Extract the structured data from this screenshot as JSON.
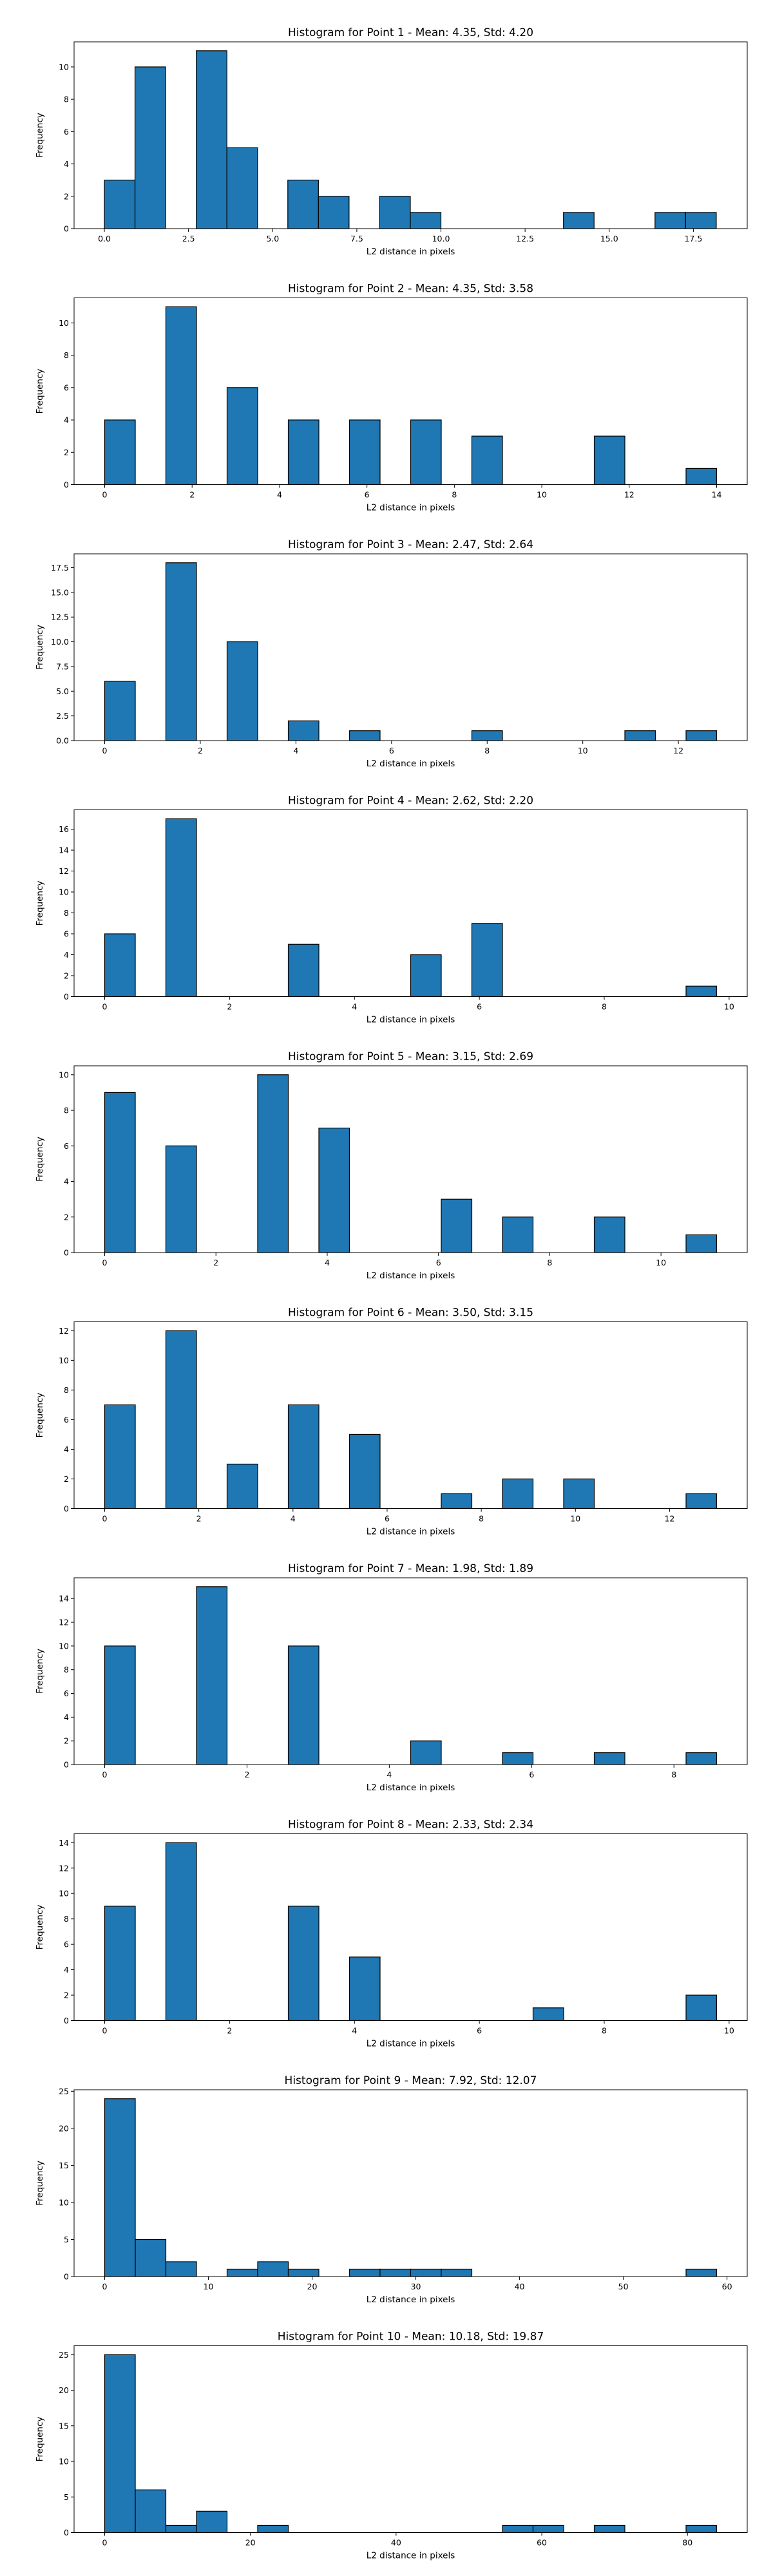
{
  "chart_data": [
    {
      "type": "bar",
      "title": "Histogram for Point 1 - Mean: 4.35, Std: 4.20",
      "xlabel": "L2 distance in pixels",
      "ylabel": "Frequency",
      "xlim": [
        -0.9,
        19.1
      ],
      "ylim": [
        0,
        11.55
      ],
      "xticks": [
        0,
        2.5,
        5,
        7.5,
        10,
        12.5,
        15,
        17.5
      ],
      "xtick_labels": [
        "0.0",
        "2.5",
        "5.0",
        "7.5",
        "10.0",
        "12.5",
        "15.0",
        "17.5"
      ],
      "yticks": [
        0,
        2,
        4,
        6,
        8,
        10
      ],
      "bin_edges": [
        0,
        0.91,
        1.82,
        2.73,
        3.64,
        4.55,
        5.45,
        6.36,
        7.27,
        8.18,
        9.09,
        10.0,
        10.91,
        11.82,
        12.73,
        13.64,
        14.55,
        15.45,
        16.36,
        17.27,
        18.18
      ],
      "values": [
        3,
        10,
        0,
        11,
        5,
        0,
        3,
        2,
        0,
        2,
        1,
        0,
        0,
        0,
        0,
        1,
        0,
        0,
        1,
        1
      ]
    },
    {
      "type": "bar",
      "title": "Histogram for Point 2 - Mean: 4.35, Std: 3.58",
      "xlabel": "L2 distance in pixels",
      "ylabel": "Frequency",
      "xlim": [
        -0.7,
        14.7
      ],
      "ylim": [
        0,
        11.55
      ],
      "xticks": [
        0,
        2,
        4,
        6,
        8,
        10,
        12,
        14
      ],
      "xtick_labels": [
        "0",
        "2",
        "4",
        "6",
        "8",
        "10",
        "12",
        "14"
      ],
      "yticks": [
        0,
        2,
        4,
        6,
        8,
        10
      ],
      "bin_edges": [
        0,
        0.7,
        1.4,
        2.1,
        2.8,
        3.5,
        4.2,
        4.9,
        5.6,
        6.3,
        7.0,
        7.7,
        8.4,
        9.1,
        9.8,
        10.5,
        11.2,
        11.9,
        12.6,
        13.3,
        14.0
      ],
      "values": [
        4,
        0,
        11,
        0,
        6,
        0,
        4,
        0,
        4,
        0,
        4,
        0,
        3,
        0,
        0,
        0,
        3,
        0,
        0,
        1
      ]
    },
    {
      "type": "bar",
      "title": "Histogram for Point 3 - Mean: 2.47, Std: 2.64",
      "xlabel": "L2 distance in pixels",
      "ylabel": "Frequency",
      "xlim": [
        -0.64,
        13.44
      ],
      "ylim": [
        0,
        18.9
      ],
      "xticks": [
        0,
        2,
        4,
        6,
        8,
        10,
        12
      ],
      "xtick_labels": [
        "0",
        "2",
        "4",
        "6",
        "8",
        "10",
        "12"
      ],
      "yticks": [
        0,
        2.5,
        5,
        7.5,
        10,
        12.5,
        15,
        17.5
      ],
      "ytick_labels": [
        "0.0",
        "2.5",
        "5.0",
        "7.5",
        "10.0",
        "12.5",
        "15.0",
        "17.5"
      ],
      "bin_edges": [
        0,
        0.64,
        1.28,
        1.92,
        2.56,
        3.2,
        3.84,
        4.48,
        5.12,
        5.76,
        6.4,
        7.04,
        7.68,
        8.32,
        8.96,
        9.6,
        10.24,
        10.88,
        11.52,
        12.16,
        12.8
      ],
      "values": [
        6,
        0,
        18,
        0,
        10,
        0,
        2,
        0,
        1,
        0,
        0,
        0,
        1,
        0,
        0,
        0,
        0,
        1,
        0,
        1
      ]
    },
    {
      "type": "bar",
      "title": "Histogram for Point 4 - Mean: 2.62, Std: 2.20",
      "xlabel": "L2 distance in pixels",
      "ylabel": "Frequency",
      "xlim": [
        -0.49,
        10.29
      ],
      "ylim": [
        0,
        17.85
      ],
      "xticks": [
        0,
        2,
        4,
        6,
        8,
        10
      ],
      "xtick_labels": [
        "0",
        "2",
        "4",
        "6",
        "8",
        "10"
      ],
      "yticks": [
        0,
        2,
        4,
        6,
        8,
        10,
        12,
        14,
        16
      ],
      "bin_edges": [
        0,
        0.49,
        0.98,
        1.47,
        1.96,
        2.45,
        2.94,
        3.43,
        3.92,
        4.41,
        4.9,
        5.39,
        5.88,
        6.37,
        6.86,
        7.35,
        7.84,
        8.33,
        8.82,
        9.31,
        9.8
      ],
      "values": [
        6,
        0,
        17,
        0,
        0,
        0,
        5,
        0,
        0,
        0,
        4,
        0,
        7,
        0,
        0,
        0,
        0,
        0,
        0,
        1
      ]
    },
    {
      "type": "bar",
      "title": "Histogram for Point 5 - Mean: 3.15, Std: 2.69",
      "xlabel": "L2 distance in pixels",
      "ylabel": "Frequency",
      "xlim": [
        -0.55,
        11.55
      ],
      "ylim": [
        0,
        10.5
      ],
      "xticks": [
        0,
        2,
        4,
        6,
        8,
        10
      ],
      "xtick_labels": [
        "0",
        "2",
        "4",
        "6",
        "8",
        "10"
      ],
      "yticks": [
        0,
        2,
        4,
        6,
        8,
        10
      ],
      "bin_edges": [
        0,
        0.55,
        1.1,
        1.65,
        2.2,
        2.75,
        3.3,
        3.85,
        4.4,
        4.95,
        5.5,
        6.05,
        6.6,
        7.15,
        7.7,
        8.25,
        8.8,
        9.35,
        9.9,
        10.45,
        11.0
      ],
      "values": [
        9,
        0,
        6,
        0,
        0,
        10,
        0,
        7,
        0,
        0,
        0,
        3,
        0,
        2,
        0,
        0,
        2,
        0,
        0,
        1
      ]
    },
    {
      "type": "bar",
      "title": "Histogram for Point 6 - Mean: 3.50, Std: 3.15",
      "xlabel": "L2 distance in pixels",
      "ylabel": "Frequency",
      "xlim": [
        -0.65,
        13.65
      ],
      "ylim": [
        0,
        12.6
      ],
      "xticks": [
        0,
        2,
        4,
        6,
        8,
        10,
        12
      ],
      "xtick_labels": [
        "0",
        "2",
        "4",
        "6",
        "8",
        "10",
        "12"
      ],
      "yticks": [
        0,
        2,
        4,
        6,
        8,
        10,
        12
      ],
      "bin_edges": [
        0,
        0.65,
        1.3,
        1.95,
        2.6,
        3.25,
        3.9,
        4.55,
        5.2,
        5.85,
        6.5,
        7.15,
        7.8,
        8.45,
        9.1,
        9.75,
        10.4,
        11.05,
        11.7,
        12.35,
        13.0
      ],
      "values": [
        7,
        0,
        12,
        0,
        3,
        0,
        7,
        0,
        5,
        0,
        0,
        1,
        0,
        2,
        0,
        2,
        0,
        0,
        0,
        1
      ]
    },
    {
      "type": "bar",
      "title": "Histogram for Point 7 - Mean: 1.98, Std: 1.89",
      "xlabel": "L2 distance in pixels",
      "ylabel": "Frequency",
      "xlim": [
        -0.43,
        9.03
      ],
      "ylim": [
        0,
        15.75
      ],
      "xticks": [
        0,
        2,
        4,
        6,
        8
      ],
      "xtick_labels": [
        "0",
        "2",
        "4",
        "6",
        "8"
      ],
      "yticks": [
        0,
        2,
        4,
        6,
        8,
        10,
        12,
        14
      ],
      "bin_edges": [
        0,
        0.43,
        0.86,
        1.29,
        1.72,
        2.15,
        2.58,
        3.01,
        3.44,
        3.87,
        4.3,
        4.73,
        5.16,
        5.59,
        6.02,
        6.45,
        6.88,
        7.31,
        7.74,
        8.17,
        8.6
      ],
      "values": [
        10,
        0,
        0,
        15,
        0,
        0,
        10,
        0,
        0,
        0,
        2,
        0,
        0,
        1,
        0,
        0,
        1,
        0,
        0,
        1
      ]
    },
    {
      "type": "bar",
      "title": "Histogram for Point 8 - Mean: 2.33, Std: 2.34",
      "xlabel": "L2 distance in pixels",
      "ylabel": "Frequency",
      "xlim": [
        -0.49,
        10.29
      ],
      "ylim": [
        0,
        14.7
      ],
      "xticks": [
        0,
        2,
        4,
        6,
        8,
        10
      ],
      "xtick_labels": [
        "0",
        "2",
        "4",
        "6",
        "8",
        "10"
      ],
      "yticks": [
        0,
        2,
        4,
        6,
        8,
        10,
        12,
        14
      ],
      "bin_edges": [
        0,
        0.49,
        0.98,
        1.47,
        1.96,
        2.45,
        2.94,
        3.43,
        3.92,
        4.41,
        4.9,
        5.39,
        5.88,
        6.37,
        6.86,
        7.35,
        7.84,
        8.33,
        8.82,
        9.31,
        9.8
      ],
      "values": [
        9,
        0,
        14,
        0,
        0,
        0,
        9,
        0,
        5,
        0,
        0,
        0,
        0,
        0,
        1,
        0,
        0,
        0,
        0,
        2
      ]
    },
    {
      "type": "bar",
      "title": "Histogram for Point 9 - Mean: 7.92, Std: 12.07",
      "xlabel": "L2 distance in pixels",
      "ylabel": "Frequency",
      "xlim": [
        -2.95,
        61.95
      ],
      "ylim": [
        0,
        25.2
      ],
      "xticks": [
        0,
        10,
        20,
        30,
        40,
        50,
        60
      ],
      "xtick_labels": [
        "0",
        "10",
        "20",
        "30",
        "40",
        "50",
        "60"
      ],
      "yticks": [
        0,
        5,
        10,
        15,
        20,
        25
      ],
      "bin_edges": [
        0,
        2.95,
        5.9,
        8.85,
        11.8,
        14.75,
        17.7,
        20.65,
        23.6,
        26.55,
        29.5,
        32.45,
        35.4,
        38.35,
        41.3,
        44.25,
        47.2,
        50.15,
        53.1,
        56.05,
        59.0
      ],
      "values": [
        24,
        5,
        2,
        0,
        1,
        2,
        1,
        0,
        1,
        1,
        1,
        1,
        0,
        0,
        0,
        0,
        0,
        0,
        0,
        1
      ]
    },
    {
      "type": "bar",
      "title": "Histogram for Point 10 - Mean: 10.18, Std: 19.87",
      "xlabel": "L2 distance in pixels",
      "ylabel": "Frequency",
      "xlim": [
        -4.2,
        88.2
      ],
      "ylim": [
        0,
        26.25
      ],
      "xticks": [
        0,
        20,
        40,
        60,
        80
      ],
      "xtick_labels": [
        "0",
        "20",
        "40",
        "60",
        "80"
      ],
      "yticks": [
        0,
        5,
        10,
        15,
        20,
        25
      ],
      "bin_edges": [
        0,
        4.2,
        8.4,
        12.6,
        16.8,
        21.0,
        25.2,
        29.4,
        33.6,
        37.8,
        42.0,
        46.2,
        50.4,
        54.6,
        58.8,
        63.0,
        67.2,
        71.4,
        75.6,
        79.8,
        84.0
      ],
      "values": [
        25,
        6,
        1,
        3,
        0,
        1,
        0,
        0,
        0,
        0,
        0,
        0,
        0,
        1,
        1,
        0,
        1,
        0,
        0,
        1
      ]
    }
  ]
}
